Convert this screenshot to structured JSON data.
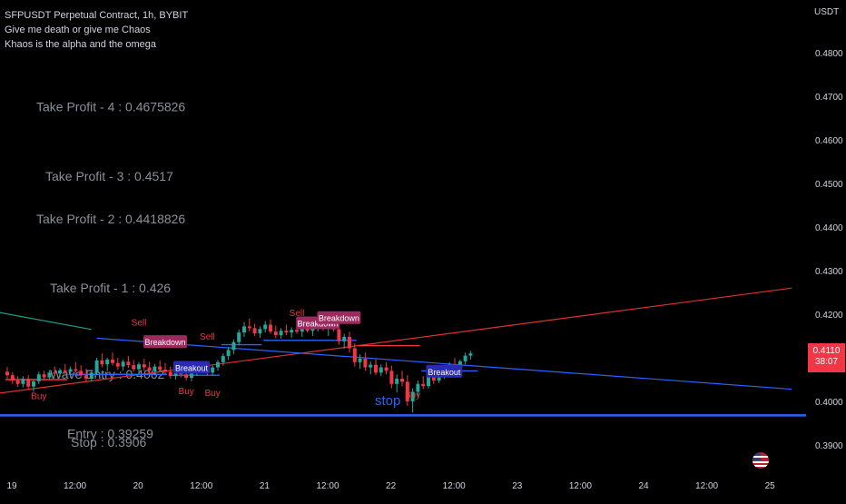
{
  "header": {
    "title": "SFPUSDT Perpetual Contract, 1h, BYBIT",
    "line2": "Give me death or give me Chaos",
    "line3": "Khaos is the alpha and the omega"
  },
  "currency": "USDT",
  "colors": {
    "background": "#000000",
    "bull": "#26a69a",
    "bear": "#f23645",
    "trend_red": "#e0302e",
    "trend_blue": "#2962ff",
    "entry_line": "#2962ff",
    "text_grey": "#8a8f99",
    "sell_text": "#f23645",
    "breakdown_label": "#9c2a5e",
    "breakout_label": "#2a2ab5"
  },
  "current_price": {
    "value": "0.4110",
    "countdown": "38:07"
  },
  "chart_data": {
    "type": "candlestick",
    "title": "SFPUSDT Perpetual Contract, 1h, BYBIT",
    "y_axis": {
      "unit": "USDT",
      "ticks": [
        "0.4800",
        "0.4700",
        "0.4600",
        "0.4500",
        "0.4400",
        "0.4300",
        "0.4200",
        "0.4100",
        "0.4000",
        "0.3900"
      ],
      "range": [
        0.3855,
        0.4895
      ]
    },
    "x_axis": {
      "ticks": [
        "19",
        "12:00",
        "20",
        "12:00",
        "21",
        "12:00",
        "22",
        "12:00",
        "23",
        "12:00",
        "24",
        "12:00",
        "25"
      ],
      "tick_bar_index": [
        0,
        12,
        24,
        36,
        48,
        60,
        72,
        84,
        96,
        108,
        120,
        132,
        144
      ],
      "bar_count": 146
    },
    "levels": [
      {
        "label": "Take Profit - 4 : 0.4675826",
        "value": 0.4675826
      },
      {
        "label": "Take Profit - 3 : 0.4517",
        "value": 0.4517
      },
      {
        "label": "Take Profit - 2 : 0.4418826",
        "value": 0.4418826
      },
      {
        "label": "Take Profit - 1 : 0.426",
        "value": 0.426
      },
      {
        "label": "Wave Entry : 0.4062",
        "value": 0.4062
      },
      {
        "label": "Entry : 0.39259",
        "value": 0.39259
      },
      {
        "label": "Stop : 0.3906",
        "value": 0.3906
      }
    ],
    "entry_line": 0.3968,
    "stop_label": "stop",
    "signals": [
      {
        "text": "Buy",
        "type": "buy",
        "bar": 6,
        "price": 0.4005
      },
      {
        "text": "Sell",
        "type": "sell",
        "bar": 25,
        "price": 0.4174
      },
      {
        "text": "Breakdown",
        "type": "breakdown",
        "bar": 30,
        "price": 0.4131
      },
      {
        "text": "Breakout",
        "type": "breakout",
        "bar": 35,
        "price": 0.4072
      },
      {
        "text": "Buy",
        "type": "buy",
        "bar": 34,
        "price": 0.4017
      },
      {
        "text": "Sell",
        "type": "sell",
        "bar": 38,
        "price": 0.4142
      },
      {
        "text": "Buy",
        "type": "buy",
        "bar": 39,
        "price": 0.4012
      },
      {
        "text": "Sell",
        "type": "sell",
        "bar": 55,
        "price": 0.4196
      },
      {
        "text": "Breakdown",
        "type": "breakdown",
        "bar": 59,
        "price": 0.4174
      },
      {
        "text": "Breakdown",
        "type": "breakdown",
        "bar": 63,
        "price": 0.4186
      },
      {
        "text": "Buy",
        "type": "buy",
        "bar": 77,
        "price": 0.4008
      },
      {
        "text": "Breakout",
        "type": "breakout",
        "bar": 83,
        "price": 0.4063
      }
    ],
    "trendlines": [
      {
        "name": "teal",
        "color": "#1e9e8a",
        "from": [
          -2,
          0.4205
        ],
        "to": [
          16,
          0.4165
        ]
      },
      {
        "name": "red",
        "color": "#e0302e",
        "from": [
          -2,
          0.4018
        ],
        "to": [
          149,
          0.426
        ]
      },
      {
        "name": "blue",
        "color": "#2962ff",
        "from": [
          17,
          0.4145
        ],
        "to": [
          149,
          0.4028
        ]
      }
    ],
    "candles": [
      [
        0.4068,
        0.4079,
        0.4052,
        0.406
      ],
      [
        0.406,
        0.4067,
        0.404,
        0.4048
      ],
      [
        0.4048,
        0.4058,
        0.4033,
        0.404
      ],
      [
        0.404,
        0.4058,
        0.4032,
        0.4052
      ],
      [
        0.4052,
        0.406,
        0.4028,
        0.4034
      ],
      [
        0.4034,
        0.405,
        0.4022,
        0.4046
      ],
      [
        0.4046,
        0.4068,
        0.404,
        0.4062
      ],
      [
        0.4062,
        0.407,
        0.4048,
        0.4055
      ],
      [
        0.4055,
        0.4072,
        0.405,
        0.4066
      ],
      [
        0.4066,
        0.408,
        0.4058,
        0.4064
      ],
      [
        0.4064,
        0.4076,
        0.4056,
        0.4071
      ],
      [
        0.4071,
        0.4086,
        0.4062,
        0.4068
      ],
      [
        0.4068,
        0.408,
        0.4055,
        0.4074
      ],
      [
        0.4074,
        0.409,
        0.4066,
        0.407
      ],
      [
        0.407,
        0.4083,
        0.4054,
        0.406
      ],
      [
        0.406,
        0.4075,
        0.4045,
        0.4052
      ],
      [
        0.4052,
        0.407,
        0.4045,
        0.4066
      ],
      [
        0.4066,
        0.41,
        0.406,
        0.4094
      ],
      [
        0.4094,
        0.411,
        0.4078,
        0.4085
      ],
      [
        0.4085,
        0.41,
        0.407,
        0.4096
      ],
      [
        0.4096,
        0.4112,
        0.4082,
        0.4088
      ],
      [
        0.4088,
        0.41,
        0.4072,
        0.408
      ],
      [
        0.408,
        0.4096,
        0.407,
        0.4091
      ],
      [
        0.4091,
        0.4104,
        0.4077,
        0.4083
      ],
      [
        0.4083,
        0.4095,
        0.4068,
        0.4074
      ],
      [
        0.4074,
        0.409,
        0.4065,
        0.4085
      ],
      [
        0.4085,
        0.4098,
        0.407,
        0.4078
      ],
      [
        0.4078,
        0.4091,
        0.4063,
        0.407
      ],
      [
        0.407,
        0.4086,
        0.406,
        0.408
      ],
      [
        0.408,
        0.4094,
        0.4068,
        0.4073
      ],
      [
        0.4073,
        0.4088,
        0.4062,
        0.4068
      ],
      [
        0.4068,
        0.408,
        0.4052,
        0.4058
      ],
      [
        0.4058,
        0.4075,
        0.405,
        0.4069
      ],
      [
        0.4069,
        0.4082,
        0.4055,
        0.4062
      ],
      [
        0.4062,
        0.4076,
        0.4048,
        0.4054
      ],
      [
        0.4054,
        0.407,
        0.4046,
        0.4066
      ],
      [
        0.4066,
        0.408,
        0.4058,
        0.4075
      ],
      [
        0.4075,
        0.4092,
        0.4066,
        0.4072
      ],
      [
        0.4072,
        0.4088,
        0.406,
        0.4066
      ],
      [
        0.4066,
        0.4082,
        0.4058,
        0.4078
      ],
      [
        0.4078,
        0.4095,
        0.407,
        0.409
      ],
      [
        0.409,
        0.411,
        0.4082,
        0.4104
      ],
      [
        0.4104,
        0.4125,
        0.4095,
        0.4118
      ],
      [
        0.4118,
        0.4142,
        0.4108,
        0.4136
      ],
      [
        0.4136,
        0.4165,
        0.4128,
        0.4158
      ],
      [
        0.4158,
        0.4182,
        0.4148,
        0.4172
      ],
      [
        0.4172,
        0.419,
        0.416,
        0.4168
      ],
      [
        0.4168,
        0.4178,
        0.415,
        0.4156
      ],
      [
        0.4156,
        0.4172,
        0.4146,
        0.4166
      ],
      [
        0.4166,
        0.4184,
        0.4158,
        0.4176
      ],
      [
        0.4176,
        0.4188,
        0.4155,
        0.416
      ],
      [
        0.416,
        0.4174,
        0.4145,
        0.4152
      ],
      [
        0.4152,
        0.4168,
        0.4144,
        0.4162
      ],
      [
        0.4162,
        0.4176,
        0.4152,
        0.4158
      ],
      [
        0.4158,
        0.417,
        0.4146,
        0.4164
      ],
      [
        0.4164,
        0.4178,
        0.4155,
        0.416
      ],
      [
        0.416,
        0.4172,
        0.4148,
        0.4166
      ],
      [
        0.4166,
        0.418,
        0.4158,
        0.4162
      ],
      [
        0.4162,
        0.4175,
        0.415,
        0.417
      ],
      [
        0.417,
        0.4186,
        0.416,
        0.4176
      ],
      [
        0.4176,
        0.419,
        0.4162,
        0.4166
      ],
      [
        0.4166,
        0.4182,
        0.415,
        0.4172
      ],
      [
        0.4172,
        0.4186,
        0.416,
        0.4165
      ],
      [
        0.4165,
        0.4178,
        0.413,
        0.4138
      ],
      [
        0.4138,
        0.4155,
        0.412,
        0.4148
      ],
      [
        0.4148,
        0.416,
        0.4112,
        0.4122
      ],
      [
        0.4122,
        0.4134,
        0.408,
        0.409
      ],
      [
        0.409,
        0.4108,
        0.4075,
        0.4098
      ],
      [
        0.4098,
        0.4112,
        0.407,
        0.4078
      ],
      [
        0.4078,
        0.4092,
        0.4062,
        0.4084
      ],
      [
        0.4084,
        0.4096,
        0.406,
        0.4066
      ],
      [
        0.4066,
        0.4085,
        0.4058,
        0.4078
      ],
      [
        0.4078,
        0.409,
        0.4062,
        0.407
      ],
      [
        0.407,
        0.4082,
        0.403,
        0.404
      ],
      [
        0.404,
        0.4062,
        0.402,
        0.4052
      ],
      [
        0.4052,
        0.407,
        0.4035,
        0.4045
      ],
      [
        0.4045,
        0.406,
        0.399,
        0.4
      ],
      [
        0.4,
        0.403,
        0.3975,
        0.4022
      ],
      [
        0.4022,
        0.4048,
        0.401,
        0.404
      ],
      [
        0.404,
        0.4058,
        0.4028,
        0.4035
      ],
      [
        0.4035,
        0.4062,
        0.403,
        0.4056
      ],
      [
        0.4056,
        0.407,
        0.404,
        0.4048
      ],
      [
        0.4048,
        0.4068,
        0.4042,
        0.4062
      ],
      [
        0.4062,
        0.408,
        0.4052,
        0.4072
      ],
      [
        0.4072,
        0.409,
        0.406,
        0.4084
      ],
      [
        0.4084,
        0.41,
        0.407,
        0.4078
      ],
      [
        0.4078,
        0.4096,
        0.4072,
        0.4092
      ],
      [
        0.4092,
        0.4112,
        0.4085,
        0.4105
      ],
      [
        0.4105,
        0.4116,
        0.4096,
        0.411
      ]
    ],
    "supertrend": [
      {
        "from": 0,
        "to": 11,
        "value": 0.405,
        "color": "#f23645"
      },
      {
        "from": 12,
        "to": 30,
        "value": 0.4062,
        "color": "#2962ff"
      },
      {
        "from": 31,
        "to": 40,
        "value": 0.406,
        "color": "#2962ff"
      },
      {
        "from": 41,
        "to": 48,
        "value": 0.413,
        "color": "#2962ff"
      },
      {
        "from": 49,
        "to": 66,
        "value": 0.414,
        "color": "#2962ff"
      },
      {
        "from": 67,
        "to": 78,
        "value": 0.4128,
        "color": "#f23645"
      },
      {
        "from": 79,
        "to": 89,
        "value": 0.407,
        "color": "#2962ff"
      }
    ]
  }
}
